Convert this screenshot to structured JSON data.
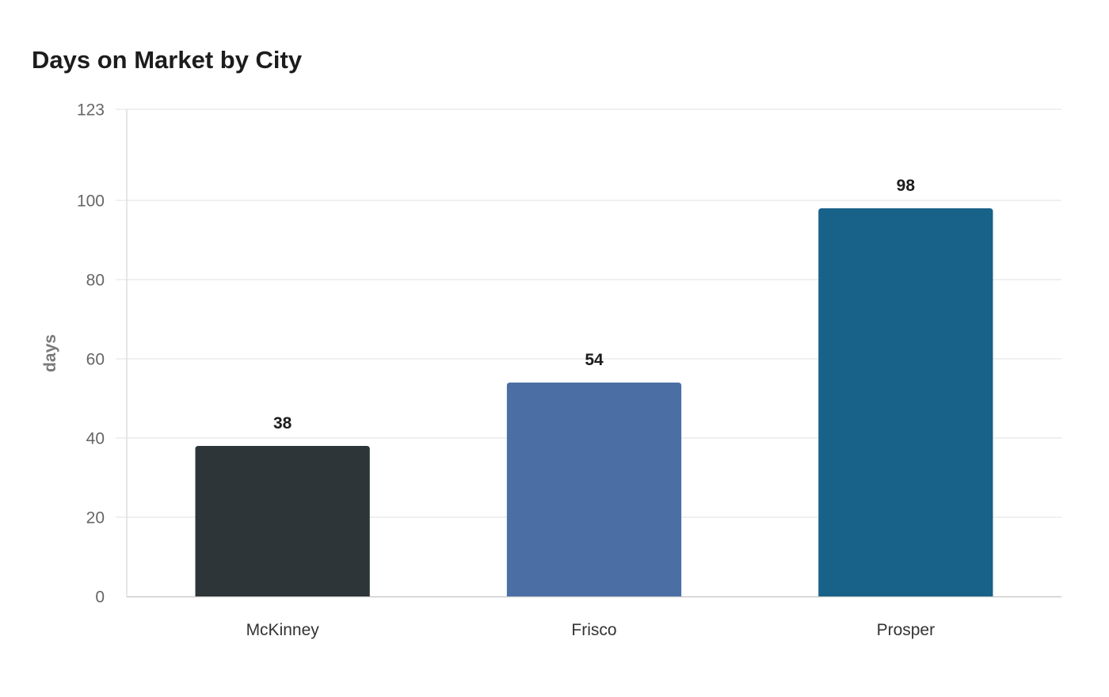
{
  "chart_data": {
    "type": "bar",
    "title": "Days on Market by City",
    "xlabel": "",
    "ylabel": "days",
    "categories": [
      "McKinney",
      "Frisco",
      "Prosper"
    ],
    "values": [
      38,
      54,
      98
    ],
    "value_labels": [
      "38",
      "54",
      "98"
    ],
    "colors": [
      "#2e3538",
      "#4b6fa5",
      "#186188"
    ],
    "ylim": [
      0,
      123
    ],
    "yticks": [
      0,
      20,
      40,
      60,
      80,
      100,
      123
    ],
    "grid": true,
    "legend": "none"
  }
}
